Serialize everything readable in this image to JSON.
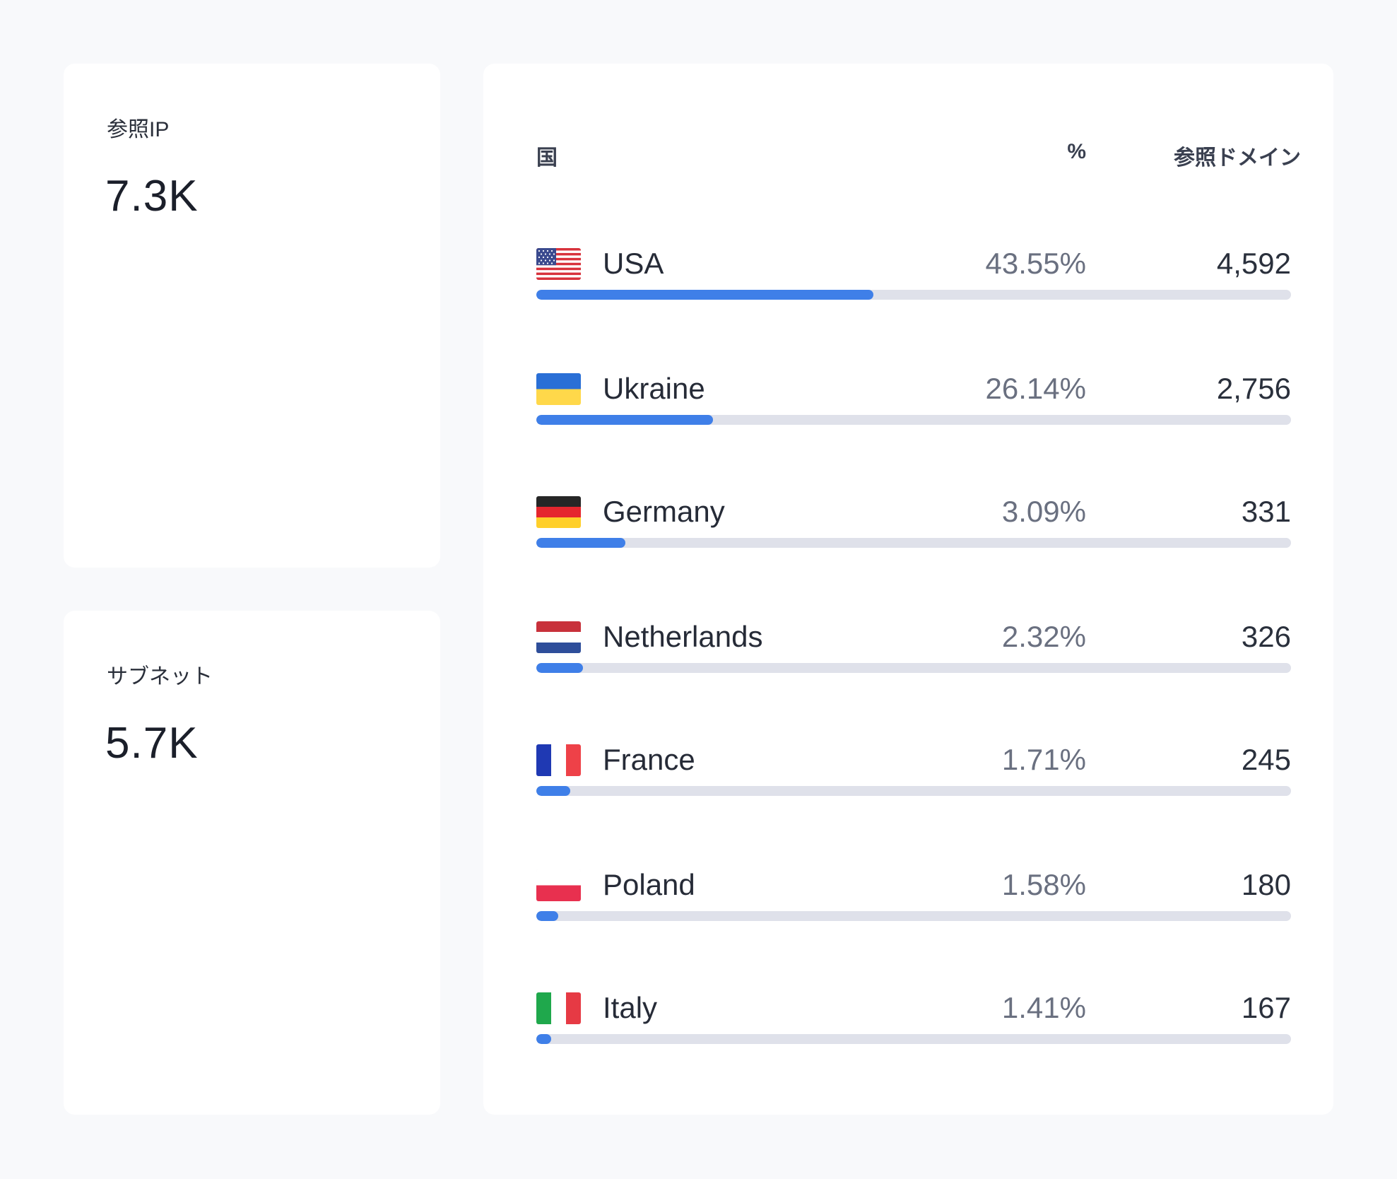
{
  "stats": [
    {
      "label": "参照IP",
      "value": "7.3K"
    },
    {
      "label": "サブネット",
      "value": "5.7K"
    }
  ],
  "countries_table": {
    "headers": {
      "country": "国",
      "percent": "%",
      "domains": "参照ドメイン"
    },
    "rows": [
      {
        "country": "USA",
        "percent": "43.55%",
        "domains": "4,592",
        "bar_fraction": 0.447,
        "flag": "usa-flag-icon"
      },
      {
        "country": "Ukraine",
        "percent": "26.14%",
        "domains": "2,756",
        "bar_fraction": 0.234,
        "flag": "ukraine-flag-icon"
      },
      {
        "country": "Germany",
        "percent": "3.09%",
        "domains": "331",
        "bar_fraction": 0.118,
        "flag": "germany-flag-icon"
      },
      {
        "country": "Netherlands",
        "percent": "2.32%",
        "domains": "326",
        "bar_fraction": 0.062,
        "flag": "netherlands-flag-icon"
      },
      {
        "country": "France",
        "percent": "1.71%",
        "domains": "245",
        "bar_fraction": 0.045,
        "flag": "france-flag-icon"
      },
      {
        "country": "Poland",
        "percent": "1.58%",
        "domains": "180",
        "bar_fraction": 0.029,
        "flag": "poland-flag-icon"
      },
      {
        "country": "Italy",
        "percent": "1.41%",
        "domains": "167",
        "bar_fraction": 0.02,
        "flag": "italy-flag-icon"
      }
    ]
  },
  "colors": {
    "bar_fill": "#3f7fe8",
    "bar_track": "#dfe1ea",
    "page_background": "#f8f9fb",
    "card_background": "#ffffff"
  }
}
